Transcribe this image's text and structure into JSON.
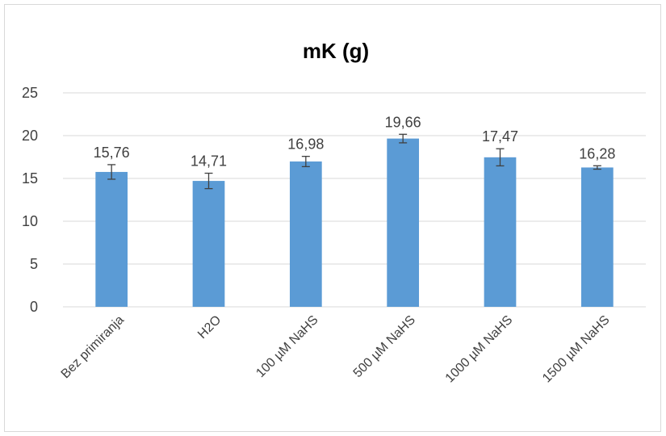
{
  "chart_data": {
    "type": "bar",
    "title": "mK (g)",
    "xlabel": "",
    "ylabel": "",
    "ylim": [
      0,
      25
    ],
    "yticks": [
      0,
      5,
      10,
      15,
      20,
      25
    ],
    "grid": true,
    "legend": "none",
    "bar_color": "#5b9bd5",
    "categories": [
      "Bez primiranja",
      "H2O",
      "100 µM NaHS",
      "500 µM NaHS",
      "1000 µM NaHS",
      "1500 µM NaHS"
    ],
    "values": [
      15.76,
      14.71,
      16.98,
      19.66,
      17.47,
      16.28
    ],
    "value_labels": [
      "15,76",
      "14,71",
      "16,98",
      "19,66",
      "17,47",
      "16,28"
    ],
    "errors": [
      0.85,
      0.9,
      0.6,
      0.5,
      1.0,
      0.2
    ]
  }
}
